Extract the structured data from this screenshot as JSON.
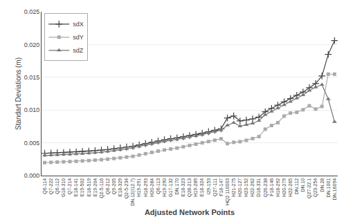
{
  "chart_data": {
    "type": "line",
    "xlabel": "Adjusted Network Points",
    "ylabel": "Standart Deviations (m)",
    "categories": [
      "Q6-114",
      "Q7-222",
      "Q6-112",
      "G18-310",
      "Q7-214",
      "E18-141",
      "E19-502",
      "E18-519",
      "E19-204",
      "Q2-5-116",
      "Q8-212",
      "Q9-205",
      "E18-329",
      "Q2-5-234",
      "DN.12(I12.7)",
      "H19-291",
      "H18-293",
      "H20-284",
      "Q6-113",
      "H19-290",
      "G17-132",
      "DN.170",
      "E18-323",
      "Q28-213",
      "H19-289",
      "E18-324",
      "I29-153",
      "Q27-111",
      "F18-147",
      "HQ2 110003",
      "H21-275",
      "H20-127",
      "H23-152",
      "H22-262",
      "D18-331",
      "Q26-238",
      "F18-146",
      "H18-292",
      "H20-279",
      "H22-265",
      "DN.112",
      "DN.10",
      "Q27-22.1",
      "Q23-254",
      "DN.28",
      "DN.1001",
      "DN.16094"
    ],
    "series": [
      {
        "name": "sdX",
        "color": "#444444",
        "marker": "plus",
        "values": [
          0.0034,
          0.00345,
          0.00348,
          0.00352,
          0.00356,
          0.00362,
          0.00368,
          0.00374,
          0.0038,
          0.00388,
          0.00398,
          0.0041,
          0.00422,
          0.00435,
          0.00448,
          0.00468,
          0.00488,
          0.00508,
          0.00528,
          0.00548,
          0.00562,
          0.00576,
          0.00592,
          0.0061,
          0.00628,
          0.00648,
          0.0067,
          0.00692,
          0.00714,
          0.0088,
          0.0091,
          0.00835,
          0.00848,
          0.00865,
          0.00892,
          0.00975,
          0.01025,
          0.01075,
          0.01125,
          0.01175,
          0.01225,
          0.01275,
          0.0134,
          0.01405,
          0.0152,
          0.0185,
          0.0206
        ]
      },
      {
        "name": "sdY",
        "color": "#aaaaaa",
        "marker": "square",
        "values": [
          0.00198,
          0.00202,
          0.00206,
          0.0021,
          0.00214,
          0.00218,
          0.00223,
          0.00229,
          0.00236,
          0.00243,
          0.00251,
          0.00261,
          0.00272,
          0.00283,
          0.00294,
          0.00314,
          0.00334,
          0.00354,
          0.00374,
          0.00392,
          0.00406,
          0.0042,
          0.0044,
          0.0046,
          0.0048,
          0.005,
          0.0052,
          0.0054,
          0.00562,
          0.00488,
          0.00508,
          0.00518,
          0.00538,
          0.00565,
          0.00595,
          0.00708,
          0.00765,
          0.00808,
          0.00908,
          0.00955,
          0.00965,
          0.01005,
          0.01065,
          0.01015,
          0.01055,
          0.01548,
          0.01548
        ]
      },
      {
        "name": "sdZ",
        "color": "#777777",
        "marker": "triangle",
        "values": [
          0.00308,
          0.00313,
          0.00317,
          0.00321,
          0.00325,
          0.0033,
          0.00336,
          0.00342,
          0.0035,
          0.00358,
          0.00369,
          0.00382,
          0.00396,
          0.0041,
          0.00424,
          0.00446,
          0.00466,
          0.00486,
          0.00506,
          0.00526,
          0.0054,
          0.00554,
          0.0057,
          0.0059,
          0.00607,
          0.00626,
          0.0065,
          0.00672,
          0.00695,
          0.00768,
          0.00808,
          0.00755,
          0.00776,
          0.00797,
          0.00838,
          0.00928,
          0.00978,
          0.01028,
          0.01078,
          0.01128,
          0.01178,
          0.01228,
          0.01298,
          0.01348,
          0.01388,
          0.01168,
          0.0082
        ]
      }
    ],
    "ylim": [
      0,
      0.025
    ],
    "yticks": [
      {
        "value": 0,
        "label": "0.000"
      },
      0.005,
      {
        "value": 0.01,
        "label": "0.010"
      },
      0.015,
      {
        "value": 0.02,
        "label": "0.020"
      },
      0.025
    ],
    "grid": true,
    "legend": "upper left"
  }
}
